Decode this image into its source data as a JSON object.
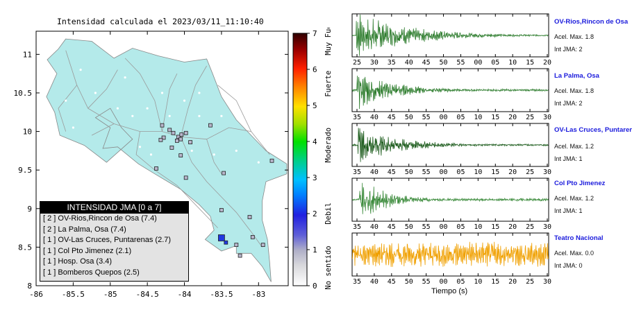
{
  "page": {
    "title": "Intensidad calculada el 2023/03/11_11:10:40"
  },
  "chart_data": [
    {
      "type": "scatter",
      "title": "Intensidad calculada el 2023/03/11_11:10:40",
      "xlim": [
        -86,
        -82.6
      ],
      "ylim": [
        8,
        11.3
      ],
      "x_ticks": [
        "-86",
        "-85.5",
        "-85",
        "-84.5",
        "-84",
        "-83.5",
        "-83"
      ],
      "y_ticks": [
        "8",
        "8.5",
        "9",
        "9.5",
        "10",
        "10.5",
        "11"
      ],
      "stations": [
        {
          "lon": -83.5,
          "lat": 8.62,
          "jma": 2
        },
        {
          "lon": -83.44,
          "lat": 8.56,
          "jma": 2
        },
        {
          "lon": -83.3,
          "lat": 8.53,
          "jma": 1
        },
        {
          "lon": -83.25,
          "lat": 8.39,
          "jma": 1
        },
        {
          "lon": -83.08,
          "lat": 8.63,
          "jma": 1
        },
        {
          "lon": -82.94,
          "lat": 8.53,
          "jma": 1
        },
        {
          "lon": -83.12,
          "lat": 8.89,
          "jma": 1
        },
        {
          "lon": -83.5,
          "lat": 8.98,
          "jma": 1
        },
        {
          "lon": -82.82,
          "lat": 9.62,
          "jma": 1
        },
        {
          "lon": -83.98,
          "lat": 9.4,
          "jma": 1
        },
        {
          "lon": -84.38,
          "lat": 9.52,
          "jma": 1
        },
        {
          "lon": -84.05,
          "lat": 9.69,
          "jma": 1
        },
        {
          "lon": -84.15,
          "lat": 9.98,
          "jma": 1
        },
        {
          "lon": -84.08,
          "lat": 9.93,
          "jma": 1
        },
        {
          "lon": -84.04,
          "lat": 9.96,
          "jma": 1
        },
        {
          "lon": -83.98,
          "lat": 9.98,
          "jma": 1
        },
        {
          "lon": -84.05,
          "lat": 9.9,
          "jma": 1
        },
        {
          "lon": -83.92,
          "lat": 9.86,
          "jma": 1
        },
        {
          "lon": -84.1,
          "lat": 9.88,
          "jma": 1
        },
        {
          "lon": -84.3,
          "lat": 10.08,
          "jma": 1
        },
        {
          "lon": -84.2,
          "lat": 10.02,
          "jma": 1
        },
        {
          "lon": -84.28,
          "lat": 9.92,
          "jma": 1
        },
        {
          "lon": -84.17,
          "lat": 9.79,
          "jma": 1
        },
        {
          "lon": -83.65,
          "lat": 10.08,
          "jma": 1
        },
        {
          "lon": -84.32,
          "lat": 9.89,
          "jma": 1
        },
        {
          "lon": -83.47,
          "lat": 9.46,
          "jma": 1
        }
      ]
    },
    {
      "type": "line",
      "xlabel": "Tiempo (s)",
      "panels": [
        {
          "station": "OV-Rios,Rincon de Osa",
          "accel_label": "Acel. Max. 1.8",
          "jma_label": "Int JMA: 2",
          "color": "#2e7d2e",
          "ticks": [
            "25",
            "30",
            "35",
            "40",
            "45",
            "50",
            "55",
            "00",
            "05",
            "10",
            "15",
            "20"
          ],
          "tick_start": 25,
          "decay": 0.045,
          "amp": 1.0,
          "noise": 0.02
        },
        {
          "station": "La Palma, Osa",
          "accel_label": "Acel. Max. 1.8",
          "jma_label": "Int JMA: 2",
          "color": "#2e7d2e",
          "ticks": [
            "35",
            "40",
            "45",
            "50",
            "55",
            "00",
            "05",
            "10",
            "15",
            "20",
            "25",
            "30"
          ],
          "tick_start": 35,
          "decay": 0.03,
          "amp": 0.9,
          "noise": 0.05
        },
        {
          "station": "OV-Las Cruces, Puntarenas",
          "accel_label": "Acel. Max. 1.2",
          "jma_label": "Int JMA: 1",
          "color": "#1a5a1a",
          "ticks": [
            "35",
            "40",
            "45",
            "50",
            "55",
            "00",
            "05",
            "10",
            "15",
            "20",
            "25",
            "30"
          ],
          "tick_start": 35,
          "decay": 0.035,
          "amp": 0.8,
          "noise": 0.04
        },
        {
          "station": "Col Pto Jimenez",
          "accel_label": "Acel. Max. 1.2",
          "jma_label": "Int JMA: 1",
          "color": "#3a8a3a",
          "ticks": [
            "35",
            "40",
            "45",
            "50",
            "55",
            "00",
            "05",
            "10",
            "15",
            "20",
            "25",
            "30"
          ],
          "tick_start": 35,
          "decay": 0.025,
          "amp": 0.9,
          "noise": 0.06
        },
        {
          "station": "Teatro Nacional",
          "accel_label": "Acel. Max. 0.0",
          "jma_label": "Int JMA: 0",
          "color": "#f0a000",
          "ticks": [
            "35",
            "40",
            "45",
            "50",
            "55",
            "00",
            "05",
            "10",
            "15",
            "20",
            "25",
            "30"
          ],
          "tick_start": 35,
          "decay": 0.0,
          "amp": 0.55,
          "noise": 0.55
        }
      ]
    }
  ],
  "legend": {
    "header": "INTENSIDAD JMA [0 a 7]",
    "rows": [
      "[ 2 ]  OV-Rios,Rincon de Osa (7.4)",
      "[ 2 ]  La Palma, Osa (7.4)",
      "[ 1 ]  OV-Las Cruces, Puntarenas (2.7)",
      "[ 1 ]  Col Pto Jimenez (2.1)",
      "[ 1 ]  Hosp. Osa (3.4)",
      "[ 1 ]  Bomberos Quepos (2.5)"
    ]
  },
  "colorbar": {
    "ticks": [
      "0",
      "1",
      "2",
      "3",
      "4",
      "5",
      "6",
      "7"
    ],
    "labels": [
      "No sentido",
      "Debil",
      "Moderado",
      "Fuerte",
      "Muy Fuerte"
    ],
    "scale_colors": [
      "#ffffff",
      "#b0b0c8",
      "#2020e0",
      "#00c0ff",
      "#00e000",
      "#ffe000",
      "#ff2000",
      "#300000"
    ]
  }
}
